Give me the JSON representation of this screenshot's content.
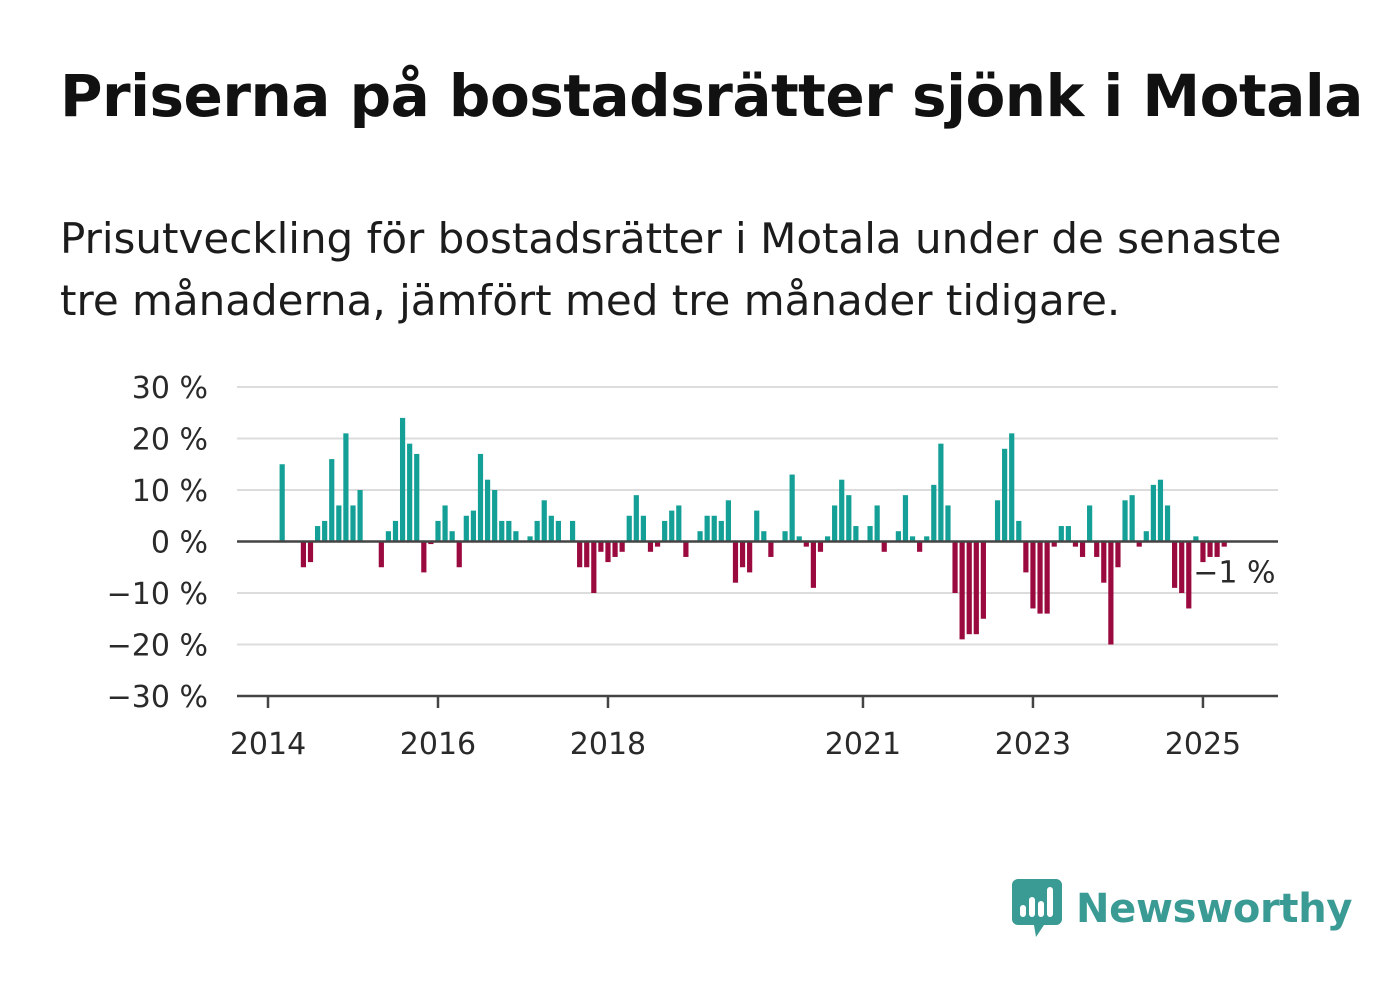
{
  "title": "Priserna på bostadsrätter sjönk i Motala",
  "subtitle": "Prisutveckling för bostadsrätter i Motala under de senaste tre månaderna, jämfört med tre månader tidigare.",
  "brand": {
    "name": "Newsworthy",
    "icon": "newsworthy-logo-icon",
    "color": "#3a9a94"
  },
  "chart_data": {
    "type": "bar",
    "x_start": "2014-01",
    "x_step": "month",
    "ylim": [
      -30,
      30
    ],
    "yticks": [
      30,
      20,
      10,
      0,
      -10,
      -20,
      -30
    ],
    "ytick_labels": [
      "30 %",
      "20 %",
      "10 %",
      "0 %",
      "−10 %",
      "−20 %",
      "−30 %"
    ],
    "xtick_labels": [
      "2014",
      "2016",
      "2018",
      "2021",
      "2023",
      "2025"
    ],
    "xtick_months": [
      "2014-01",
      "2016-01",
      "2018-01",
      "2021-01",
      "2023-01",
      "2025-01"
    ],
    "grid": true,
    "positive_color": "#14a096",
    "negative_color": "#9b0a3f",
    "annotation": {
      "text": "−1 %",
      "month": "2025-06",
      "value": -1
    },
    "values": [
      0,
      0,
      15,
      0,
      0,
      -5,
      -4,
      3,
      4,
      16,
      7,
      21,
      7,
      10,
      0,
      0,
      -5,
      2,
      4,
      24,
      19,
      17,
      -6,
      -0.5,
      4,
      7,
      2,
      -5,
      5,
      6,
      17,
      12,
      10,
      4,
      4,
      2,
      0,
      1,
      4,
      8,
      5,
      4,
      0,
      4,
      -5,
      -5,
      -10,
      -2,
      -4,
      -3,
      -2,
      5,
      9,
      5,
      -2,
      -1,
      4,
      6,
      7,
      -3,
      0,
      2,
      5,
      5,
      4,
      8,
      -8,
      -5,
      -6,
      6,
      2,
      -3,
      0,
      2,
      13,
      1,
      -1,
      -9,
      -2,
      1,
      7,
      12,
      9,
      3,
      0,
      3,
      7,
      -2,
      0,
      2,
      9,
      1,
      -2,
      1,
      11,
      19,
      7,
      -10,
      -19,
      -18,
      -18,
      -15,
      0,
      8,
      18,
      21,
      4,
      -6,
      -13,
      -14,
      -14,
      -1,
      3,
      3,
      -1,
      -3,
      7,
      -3,
      -8,
      -20,
      -5,
      8,
      9,
      -1,
      2,
      11,
      12,
      7,
      -9,
      -10,
      -13,
      1,
      -4,
      -3,
      -3,
      -1
    ]
  }
}
